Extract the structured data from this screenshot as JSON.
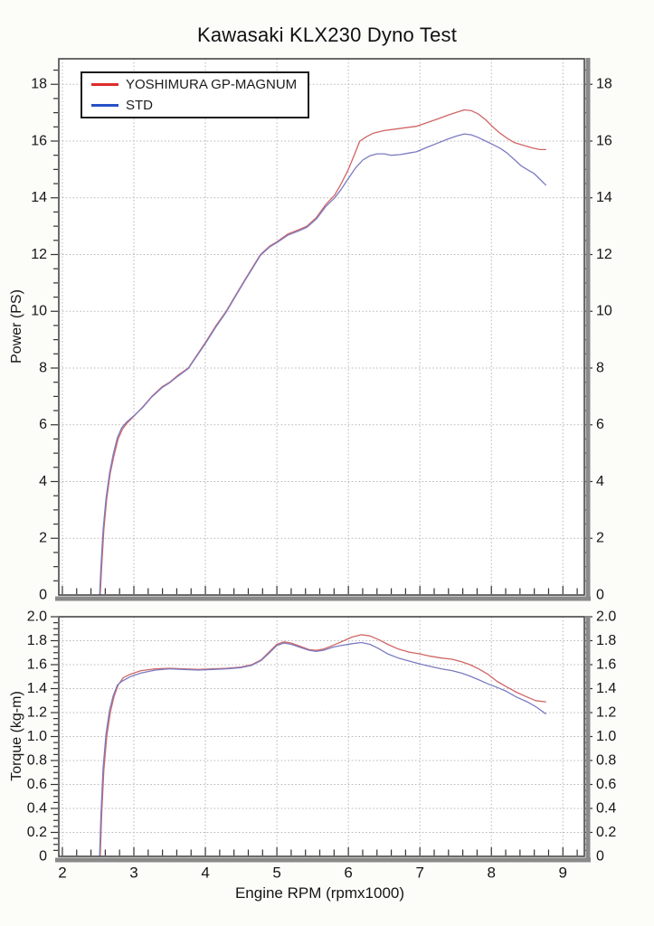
{
  "title": "Kawasaki KLX230 Dyno Test",
  "x_axis_label": "Engine RPM (rpmx1000)",
  "legend": {
    "items": [
      {
        "label": "YOSHIMURA GP-MAGNUM",
        "color": "#e02b2b"
      },
      {
        "label": "STD",
        "color": "#2850c8"
      }
    ]
  },
  "colors": {
    "curve_yoshimura": "#d06565",
    "curve_std": "#7b7bc2",
    "grid": "#b5b5b5",
    "frame": "#464646",
    "axis_bar": "#8a8a8a",
    "text": "#161616",
    "plot_bg": "#ffffff"
  },
  "chart_data": [
    {
      "type": "line",
      "name": "power",
      "title": "",
      "xlabel": "Engine RPM (rpmx1000)",
      "ylabel": "Power (PS)",
      "xlim": [
        1.95,
        9.3
      ],
      "ylim": [
        0,
        18.9
      ],
      "grid": true,
      "legend_position": "top-left",
      "x_major_ticks": [
        2,
        3,
        4,
        5,
        6,
        7,
        8,
        9
      ],
      "x_tick_labels": [
        "2",
        "3",
        "4",
        "5",
        "6",
        "7",
        "8",
        "9"
      ],
      "x_minor_step": 0.2,
      "y_major_ticks": [
        0,
        2,
        4,
        6,
        8,
        10,
        12,
        14,
        16,
        18
      ],
      "y_tick_labels": [
        "0",
        "2",
        "4",
        "6",
        "8",
        "10",
        "12",
        "14",
        "16",
        "18"
      ],
      "y_minor_step": 0.5,
      "series": [
        {
          "name": "YOSHIMURA GP-MAGNUM",
          "peak": {
            "rpm_x1000": 7.6,
            "value": 17.1
          },
          "points": [
            [
              2.53,
              0
            ],
            [
              2.55,
              1.0
            ],
            [
              2.58,
              2.3
            ],
            [
              2.62,
              3.4
            ],
            [
              2.67,
              4.3
            ],
            [
              2.72,
              4.9
            ],
            [
              2.78,
              5.5
            ],
            [
              2.84,
              5.85
            ],
            [
              2.9,
              6.05
            ],
            [
              3.0,
              6.3
            ],
            [
              3.12,
              6.62
            ],
            [
              3.25,
              7.0
            ],
            [
              3.4,
              7.35
            ],
            [
              3.5,
              7.5
            ],
            [
              3.62,
              7.75
            ],
            [
              3.76,
              8.0
            ],
            [
              3.88,
              8.45
            ],
            [
              4.0,
              8.9
            ],
            [
              4.15,
              9.5
            ],
            [
              4.29,
              10.0
            ],
            [
              4.42,
              10.55
            ],
            [
              4.55,
              11.1
            ],
            [
              4.66,
              11.55
            ],
            [
              4.77,
              12.0
            ],
            [
              4.9,
              12.3
            ],
            [
              5.0,
              12.45
            ],
            [
              5.15,
              12.72
            ],
            [
              5.3,
              12.87
            ],
            [
              5.42,
              13.0
            ],
            [
              5.55,
              13.3
            ],
            [
              5.68,
              13.75
            ],
            [
              5.81,
              14.1
            ],
            [
              5.9,
              14.5
            ],
            [
              6.0,
              15.0
            ],
            [
              6.08,
              15.5
            ],
            [
              6.16,
              16.0
            ],
            [
              6.25,
              16.15
            ],
            [
              6.35,
              16.28
            ],
            [
              6.5,
              16.37
            ],
            [
              6.65,
              16.42
            ],
            [
              6.8,
              16.47
            ],
            [
              6.95,
              16.52
            ],
            [
              7.1,
              16.65
            ],
            [
              7.25,
              16.78
            ],
            [
              7.4,
              16.92
            ],
            [
              7.52,
              17.02
            ],
            [
              7.62,
              17.1
            ],
            [
              7.72,
              17.07
            ],
            [
              7.82,
              16.95
            ],
            [
              7.92,
              16.75
            ],
            [
              8.02,
              16.5
            ],
            [
              8.12,
              16.28
            ],
            [
              8.22,
              16.1
            ],
            [
              8.32,
              15.95
            ],
            [
              8.45,
              15.85
            ],
            [
              8.58,
              15.75
            ],
            [
              8.68,
              15.7
            ],
            [
              8.76,
              15.7
            ]
          ]
        },
        {
          "name": "STD",
          "peak": {
            "rpm_x1000": 7.6,
            "value": 16.25
          },
          "points": [
            [
              2.52,
              0
            ],
            [
              2.54,
              1.0
            ],
            [
              2.57,
              2.3
            ],
            [
              2.61,
              3.4
            ],
            [
              2.66,
              4.3
            ],
            [
              2.71,
              4.95
            ],
            [
              2.77,
              5.55
            ],
            [
              2.83,
              5.9
            ],
            [
              2.9,
              6.1
            ],
            [
              3.0,
              6.32
            ],
            [
              3.12,
              6.6
            ],
            [
              3.25,
              6.98
            ],
            [
              3.4,
              7.32
            ],
            [
              3.5,
              7.48
            ],
            [
              3.62,
              7.72
            ],
            [
              3.76,
              7.98
            ],
            [
              3.88,
              8.42
            ],
            [
              4.0,
              8.86
            ],
            [
              4.15,
              9.46
            ],
            [
              4.29,
              9.97
            ],
            [
              4.42,
              10.52
            ],
            [
              4.55,
              11.07
            ],
            [
              4.66,
              11.52
            ],
            [
              4.77,
              11.97
            ],
            [
              4.9,
              12.27
            ],
            [
              5.0,
              12.42
            ],
            [
              5.15,
              12.68
            ],
            [
              5.3,
              12.83
            ],
            [
              5.42,
              12.96
            ],
            [
              5.55,
              13.25
            ],
            [
              5.68,
              13.68
            ],
            [
              5.81,
              14.0
            ],
            [
              5.9,
              14.3
            ],
            [
              6.0,
              14.68
            ],
            [
              6.1,
              15.05
            ],
            [
              6.2,
              15.33
            ],
            [
              6.3,
              15.48
            ],
            [
              6.4,
              15.55
            ],
            [
              6.5,
              15.55
            ],
            [
              6.6,
              15.5
            ],
            [
              6.72,
              15.52
            ],
            [
              6.85,
              15.58
            ],
            [
              6.95,
              15.62
            ],
            [
              7.1,
              15.78
            ],
            [
              7.25,
              15.93
            ],
            [
              7.4,
              16.08
            ],
            [
              7.52,
              16.18
            ],
            [
              7.62,
              16.25
            ],
            [
              7.72,
              16.22
            ],
            [
              7.82,
              16.12
            ],
            [
              7.92,
              16.0
            ],
            [
              8.02,
              15.88
            ],
            [
              8.12,
              15.75
            ],
            [
              8.22,
              15.58
            ],
            [
              8.32,
              15.35
            ],
            [
              8.42,
              15.12
            ],
            [
              8.5,
              15.0
            ],
            [
              8.6,
              14.85
            ],
            [
              8.7,
              14.6
            ],
            [
              8.76,
              14.45
            ]
          ]
        }
      ]
    },
    {
      "type": "line",
      "name": "torque",
      "title": "",
      "xlabel": "Engine RPM (rpmx1000)",
      "ylabel": "Torque (kg-m)",
      "xlim": [
        1.95,
        9.3
      ],
      "ylim": [
        0,
        2.0
      ],
      "grid": true,
      "x_major_ticks": [
        2,
        3,
        4,
        5,
        6,
        7,
        8,
        9
      ],
      "x_tick_labels": [
        "2",
        "3",
        "4",
        "5",
        "6",
        "7",
        "8",
        "9"
      ],
      "x_minor_step": 0.2,
      "y_major_ticks": [
        0,
        0.2,
        0.4,
        0.6,
        0.8,
        1.0,
        1.2,
        1.4,
        1.6,
        1.8,
        2.0
      ],
      "y_tick_labels": [
        "0",
        "0.2",
        "0.4",
        "0.6",
        "0.8",
        "1.0",
        "1.2",
        "1.4",
        "1.6",
        "1.8",
        "2.0"
      ],
      "y_minor_step": 0.05,
      "series": [
        {
          "name": "YOSHIMURA GP-MAGNUM",
          "peak": {
            "rpm_x1000": 6.2,
            "value": 1.85
          },
          "points": [
            [
              2.53,
              0
            ],
            [
              2.55,
              0.35
            ],
            [
              2.58,
              0.72
            ],
            [
              2.62,
              1.0
            ],
            [
              2.67,
              1.2
            ],
            [
              2.72,
              1.33
            ],
            [
              2.78,
              1.43
            ],
            [
              2.85,
              1.49
            ],
            [
              2.95,
              1.52
            ],
            [
              3.1,
              1.55
            ],
            [
              3.3,
              1.565
            ],
            [
              3.5,
              1.57
            ],
            [
              3.7,
              1.565
            ],
            [
              3.9,
              1.56
            ],
            [
              4.1,
              1.565
            ],
            [
              4.3,
              1.57
            ],
            [
              4.5,
              1.58
            ],
            [
              4.65,
              1.6
            ],
            [
              4.78,
              1.64
            ],
            [
              4.88,
              1.7
            ],
            [
              5.0,
              1.77
            ],
            [
              5.1,
              1.79
            ],
            [
              5.2,
              1.78
            ],
            [
              5.32,
              1.755
            ],
            [
              5.45,
              1.725
            ],
            [
              5.55,
              1.72
            ],
            [
              5.65,
              1.73
            ],
            [
              5.78,
              1.76
            ],
            [
              5.9,
              1.79
            ],
            [
              6.05,
              1.83
            ],
            [
              6.18,
              1.85
            ],
            [
              6.3,
              1.84
            ],
            [
              6.42,
              1.81
            ],
            [
              6.55,
              1.77
            ],
            [
              6.7,
              1.73
            ],
            [
              6.85,
              1.705
            ],
            [
              7.0,
              1.69
            ],
            [
              7.15,
              1.67
            ],
            [
              7.3,
              1.655
            ],
            [
              7.45,
              1.645
            ],
            [
              7.58,
              1.625
            ],
            [
              7.7,
              1.6
            ],
            [
              7.82,
              1.565
            ],
            [
              7.95,
              1.52
            ],
            [
              8.08,
              1.46
            ],
            [
              8.2,
              1.42
            ],
            [
              8.35,
              1.37
            ],
            [
              8.5,
              1.33
            ],
            [
              8.62,
              1.3
            ],
            [
              8.76,
              1.29
            ]
          ]
        },
        {
          "name": "STD",
          "peak": {
            "rpm_x1000": 6.2,
            "value": 1.785
          },
          "points": [
            [
              2.52,
              0
            ],
            [
              2.54,
              0.35
            ],
            [
              2.57,
              0.74
            ],
            [
              2.61,
              1.02
            ],
            [
              2.66,
              1.22
            ],
            [
              2.71,
              1.34
            ],
            [
              2.77,
              1.43
            ],
            [
              2.83,
              1.46
            ],
            [
              2.95,
              1.5
            ],
            [
              3.1,
              1.53
            ],
            [
              3.3,
              1.555
            ],
            [
              3.5,
              1.565
            ],
            [
              3.7,
              1.56
            ],
            [
              3.9,
              1.555
            ],
            [
              4.1,
              1.56
            ],
            [
              4.3,
              1.565
            ],
            [
              4.5,
              1.575
            ],
            [
              4.65,
              1.595
            ],
            [
              4.78,
              1.635
            ],
            [
              4.88,
              1.69
            ],
            [
              5.0,
              1.76
            ],
            [
              5.1,
              1.78
            ],
            [
              5.2,
              1.77
            ],
            [
              5.32,
              1.745
            ],
            [
              5.45,
              1.72
            ],
            [
              5.55,
              1.71
            ],
            [
              5.65,
              1.72
            ],
            [
              5.78,
              1.745
            ],
            [
              5.9,
              1.76
            ],
            [
              6.05,
              1.775
            ],
            [
              6.18,
              1.785
            ],
            [
              6.3,
              1.77
            ],
            [
              6.42,
              1.735
            ],
            [
              6.55,
              1.69
            ],
            [
              6.7,
              1.655
            ],
            [
              6.85,
              1.63
            ],
            [
              7.0,
              1.605
            ],
            [
              7.15,
              1.585
            ],
            [
              7.3,
              1.565
            ],
            [
              7.45,
              1.55
            ],
            [
              7.58,
              1.53
            ],
            [
              7.7,
              1.505
            ],
            [
              7.82,
              1.475
            ],
            [
              7.95,
              1.44
            ],
            [
              8.08,
              1.41
            ],
            [
              8.2,
              1.38
            ],
            [
              8.35,
              1.33
            ],
            [
              8.5,
              1.29
            ],
            [
              8.62,
              1.25
            ],
            [
              8.76,
              1.19
            ]
          ]
        }
      ]
    }
  ]
}
